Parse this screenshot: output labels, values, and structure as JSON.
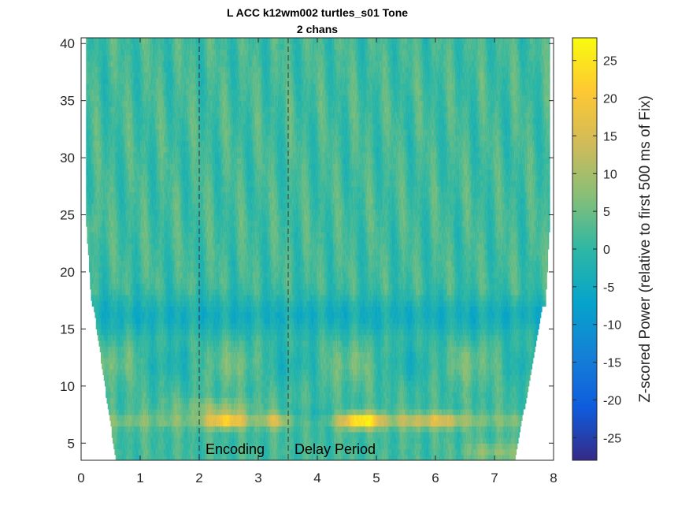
{
  "chart_data": {
    "type": "heatmap",
    "title": "L ACC k12wm002 turtles_s01 Tone",
    "subtitle": "2 chans",
    "xlabel": "",
    "ylabel": "",
    "xlim": [
      0,
      8
    ],
    "ylim": [
      3.5,
      40.5
    ],
    "xticks": [
      "0",
      "1",
      "2",
      "3",
      "4",
      "5",
      "6",
      "7",
      "8"
    ],
    "yticks": [
      "5",
      "10",
      "15",
      "20",
      "25",
      "30",
      "35",
      "40"
    ],
    "colorbar": {
      "label": "Z-scored Power (relative to first 500 ms of Fix)",
      "range": [
        -28,
        28
      ],
      "ticks": [
        "25",
        "20",
        "15",
        "10",
        "5",
        "0",
        "-5",
        "-10",
        "-15",
        "-20",
        "-25"
      ],
      "colormap": "parula"
    },
    "annotations": [
      {
        "text": "Encoding",
        "x": 2.1,
        "y": 4.5
      },
      {
        "text": "Delay Period",
        "x": 3.6,
        "y": 4.5
      }
    ],
    "event_lines_x": [
      2.0,
      3.5
    ],
    "features": [
      {
        "freq_band": [
          6.5,
          7.5
        ],
        "time": [
          2.1,
          2.7
        ],
        "peak_z": 20
      },
      {
        "freq_band": [
          6.5,
          7.5
        ],
        "time": [
          4.5,
          5.1
        ],
        "peak_z": 26
      },
      {
        "freq_band": [
          14,
          18
        ],
        "time": [
          0.2,
          7.9
        ],
        "peak_z": -6
      }
    ],
    "grid": false
  }
}
